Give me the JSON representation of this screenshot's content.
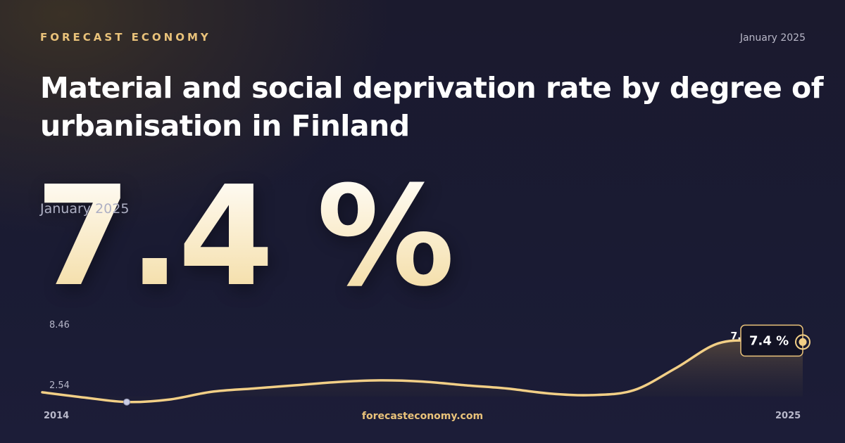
{
  "header": {
    "brand": "FORECAST ECONOMY",
    "date": "January 2025"
  },
  "title": "Material and social deprivation rate by degree of urbanisation in Finland",
  "headline": {
    "value": "7.4 %",
    "period": "January 2025"
  },
  "footer": {
    "site": "forecasteconomy.com"
  },
  "colors": {
    "accent": "#e9c27a",
    "line": "#f2cf86",
    "min_marker": "#c9cbe4"
  },
  "chart_data": {
    "type": "area",
    "x_start_label": "2014",
    "x_end_label": "2025",
    "y_max_label": "8.46",
    "y_min_label": "2.54",
    "ylim": [
      2.54,
      8.46
    ],
    "prev_value_label": "7.50",
    "last_value_label": "7.4 %",
    "values": [
      3.69,
      3.3,
      2.97,
      3.15,
      3.72,
      3.97,
      4.21,
      4.45,
      4.57,
      4.48,
      4.21,
      3.97,
      3.6,
      3.48,
      3.84,
      5.48,
      7.3,
      7.5,
      7.4
    ],
    "min_index": 2,
    "last_index": 18
  }
}
